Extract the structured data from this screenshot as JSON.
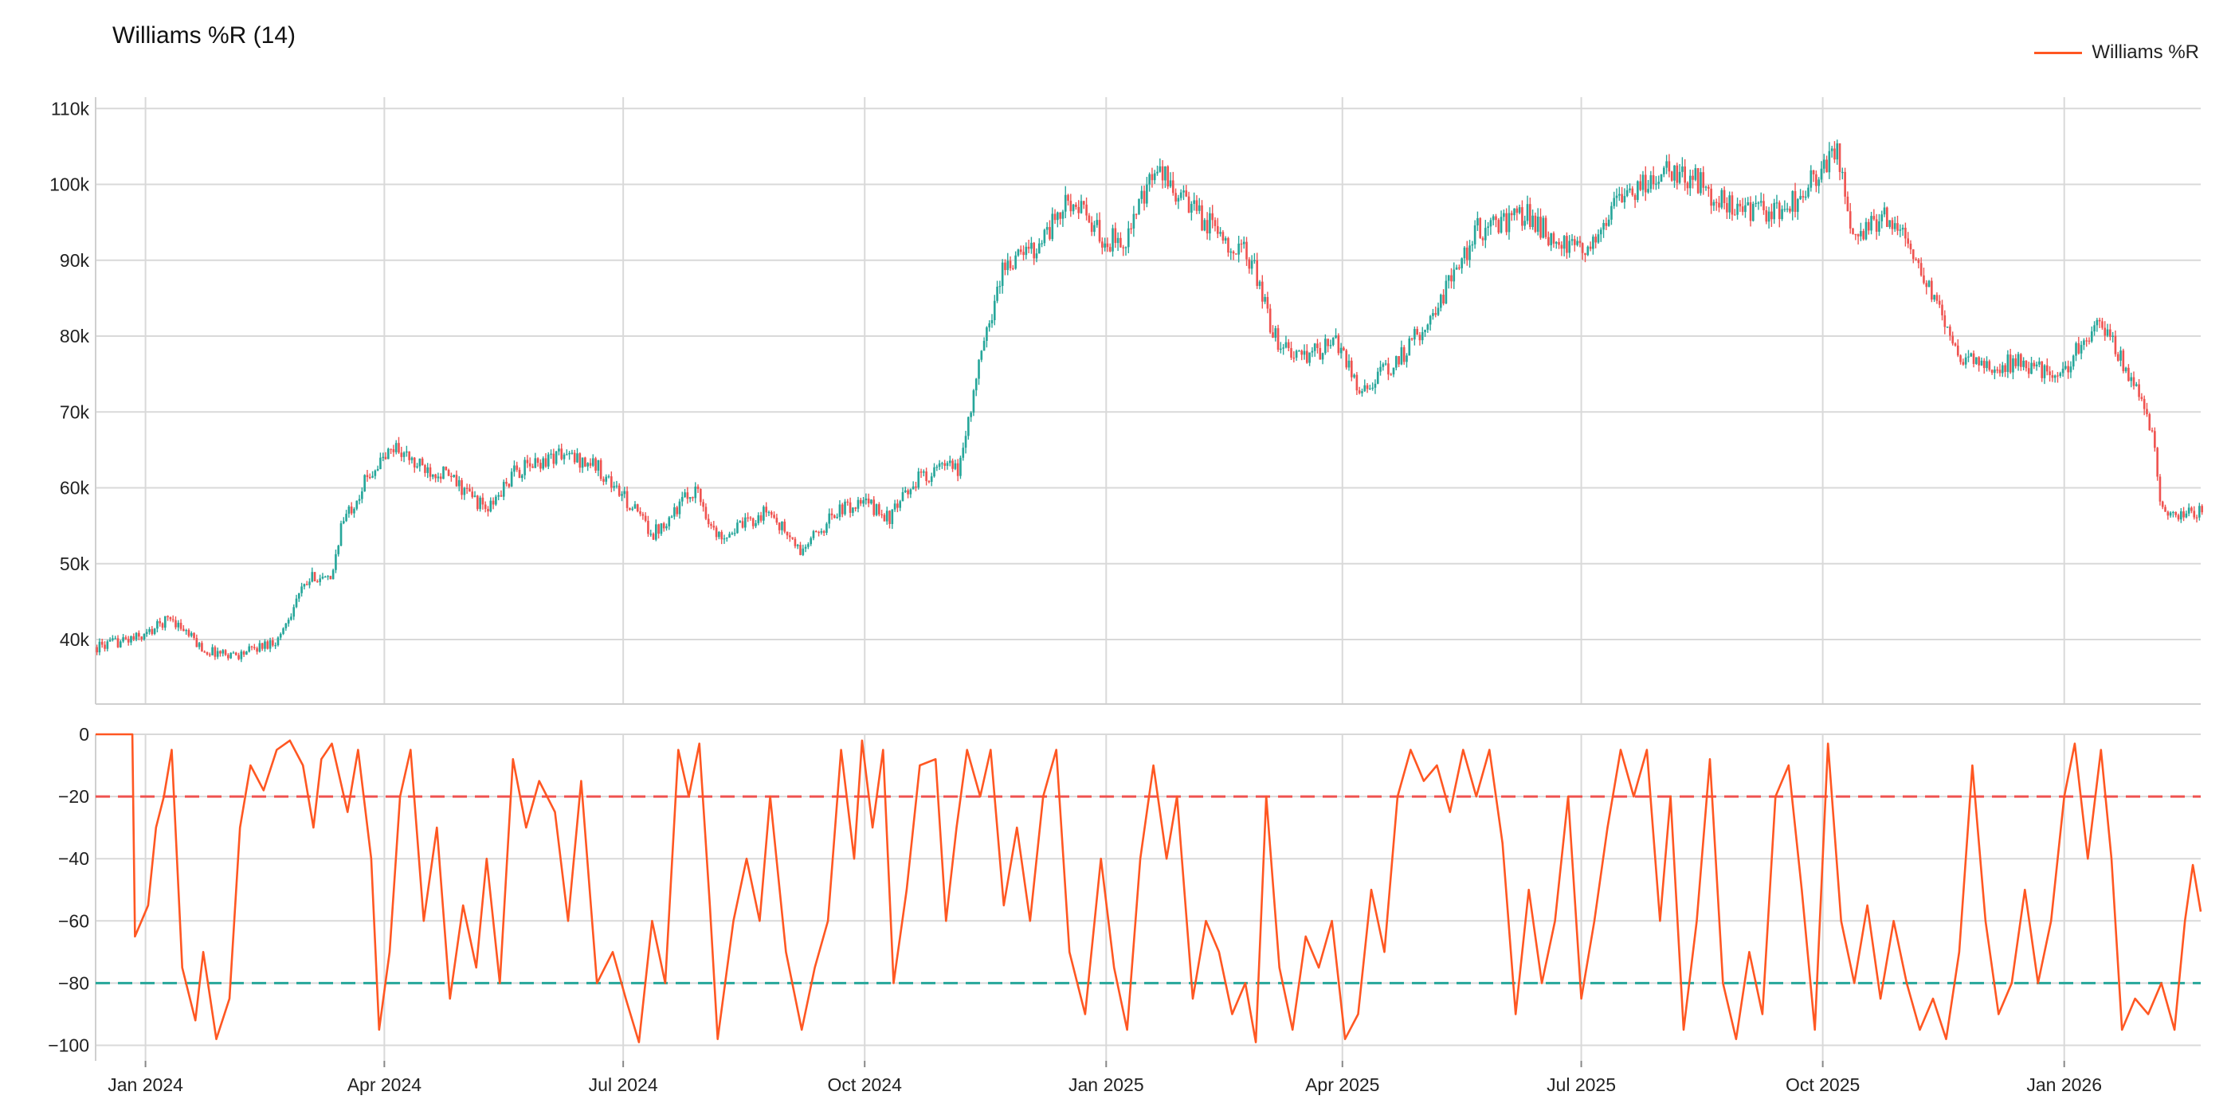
{
  "chart_data": [
    {
      "type": "candlestick",
      "title": "Williams %R (14)",
      "x_ticks": [
        "Jan 2024",
        "Apr 2024",
        "Jul 2024",
        "Oct 2024",
        "Jan 2025",
        "Apr 2025",
        "Jul 2025",
        "Oct 2025",
        "Jan 2026"
      ],
      "y_ticks": [
        "40k",
        "50k",
        "60k",
        "70k",
        "80k",
        "90k",
        "100k",
        "110k"
      ],
      "ylim": [
        31500,
        111500
      ],
      "xlim": [
        "2023-12-13",
        "2026-02-22"
      ],
      "up_color": "#26a69a",
      "down_color": "#ef5350",
      "close_path": [
        [
          "2023-12-13",
          39000
        ],
        [
          "2023-12-31",
          40500
        ],
        [
          "2024-01-10",
          43000
        ],
        [
          "2024-01-23",
          38500
        ],
        [
          "2024-02-05",
          38000
        ],
        [
          "2024-02-20",
          40000
        ],
        [
          "2024-02-28",
          46000
        ],
        [
          "2024-03-05",
          48500
        ],
        [
          "2024-03-11",
          47500
        ],
        [
          "2024-03-15",
          55000
        ],
        [
          "2024-03-26",
          62000
        ],
        [
          "2024-04-05",
          65500
        ],
        [
          "2024-04-12",
          63000
        ],
        [
          "2024-04-23",
          62000
        ],
        [
          "2024-05-10",
          57000
        ],
        [
          "2024-05-20",
          62000
        ],
        [
          "2024-06-06",
          64500
        ],
        [
          "2024-06-20",
          63000
        ],
        [
          "2024-07-05",
          57000
        ],
        [
          "2024-07-12",
          54000
        ],
        [
          "2024-07-28",
          60000
        ],
        [
          "2024-08-05",
          53500
        ],
        [
          "2024-08-15",
          55000
        ],
        [
          "2024-08-25",
          57000
        ],
        [
          "2024-09-06",
          51500
        ],
        [
          "2024-09-20",
          57000
        ],
        [
          "2024-10-01",
          58000
        ],
        [
          "2024-10-10",
          56000
        ],
        [
          "2024-10-20",
          61000
        ],
        [
          "2024-11-01",
          63000
        ],
        [
          "2024-11-05",
          62000
        ],
        [
          "2024-11-13",
          76000
        ],
        [
          "2024-11-22",
          89000
        ],
        [
          "2024-12-05",
          92000
        ],
        [
          "2024-12-18",
          98000
        ],
        [
          "2024-12-31",
          92500
        ],
        [
          "2025-01-08",
          93000
        ],
        [
          "2025-01-20",
          102000
        ],
        [
          "2025-02-01",
          97000
        ],
        [
          "2025-02-25",
          90000
        ],
        [
          "2025-03-05",
          80000
        ],
        [
          "2025-03-15",
          77000
        ],
        [
          "2025-03-30",
          79000
        ],
        [
          "2025-04-07",
          73000
        ],
        [
          "2025-04-20",
          76000
        ],
        [
          "2025-05-05",
          83000
        ],
        [
          "2025-05-22",
          94000
        ],
        [
          "2025-06-10",
          96000
        ],
        [
          "2025-06-22",
          92000
        ],
        [
          "2025-07-01",
          91000
        ],
        [
          "2025-07-15",
          98000
        ],
        [
          "2025-08-01",
          102000
        ],
        [
          "2025-08-14",
          100500
        ],
        [
          "2025-08-25",
          97000
        ],
        [
          "2025-09-10",
          96000
        ],
        [
          "2025-09-20",
          98000
        ],
        [
          "2025-10-06",
          104500
        ],
        [
          "2025-10-11",
          93000
        ],
        [
          "2025-10-25",
          96000
        ],
        [
          "2025-11-05",
          90000
        ],
        [
          "2025-11-20",
          78000
        ],
        [
          "2025-12-01",
          76000
        ],
        [
          "2025-12-15",
          76500
        ],
        [
          "2025-12-31",
          75000
        ],
        [
          "2026-01-05",
          78500
        ],
        [
          "2026-01-14",
          82000
        ],
        [
          "2026-01-25",
          75000
        ],
        [
          "2026-02-03",
          68000
        ],
        [
          "2026-02-06",
          58000
        ],
        [
          "2026-02-15",
          56000
        ],
        [
          "2026-02-22",
          57500
        ]
      ]
    },
    {
      "type": "line",
      "series": [
        {
          "name": "Williams %R",
          "color": "#ff5722"
        }
      ],
      "y_ticks": [
        "0",
        "−20",
        "−40",
        "−60",
        "−80",
        "−100"
      ],
      "ylim": [
        -105,
        0
      ],
      "overbought": -20,
      "oversold": -80,
      "overbought_color": "#ef5350",
      "oversold_color": "#26a69a",
      "points": [
        [
          "2023-12-13",
          0
        ],
        [
          "2023-12-20",
          0
        ],
        [
          "2023-12-27",
          0
        ],
        [
          "2023-12-28",
          -65
        ],
        [
          "2024-01-02",
          -55
        ],
        [
          "2024-01-05",
          -30
        ],
        [
          "2024-01-08",
          -20
        ],
        [
          "2024-01-11",
          -5
        ],
        [
          "2024-01-15",
          -75
        ],
        [
          "2024-01-20",
          -92
        ],
        [
          "2024-01-23",
          -70
        ],
        [
          "2024-01-28",
          -98
        ],
        [
          "2024-02-02",
          -85
        ],
        [
          "2024-02-06",
          -30
        ],
        [
          "2024-02-10",
          -10
        ],
        [
          "2024-02-15",
          -18
        ],
        [
          "2024-02-20",
          -5
        ],
        [
          "2024-02-25",
          -2
        ],
        [
          "2024-03-01",
          -10
        ],
        [
          "2024-03-05",
          -30
        ],
        [
          "2024-03-08",
          -8
        ],
        [
          "2024-03-12",
          -3
        ],
        [
          "2024-03-18",
          -25
        ],
        [
          "2024-03-22",
          -5
        ],
        [
          "2024-03-27",
          -40
        ],
        [
          "2024-03-30",
          -95
        ],
        [
          "2024-04-03",
          -70
        ],
        [
          "2024-04-07",
          -20
        ],
        [
          "2024-04-11",
          -5
        ],
        [
          "2024-04-16",
          -60
        ],
        [
          "2024-04-21",
          -30
        ],
        [
          "2024-04-26",
          -85
        ],
        [
          "2024-05-01",
          -55
        ],
        [
          "2024-05-06",
          -75
        ],
        [
          "2024-05-10",
          -40
        ],
        [
          "2024-05-15",
          -80
        ],
        [
          "2024-05-20",
          -8
        ],
        [
          "2024-05-25",
          -30
        ],
        [
          "2024-05-30",
          -15
        ],
        [
          "2024-06-05",
          -25
        ],
        [
          "2024-06-10",
          -60
        ],
        [
          "2024-06-15",
          -15
        ],
        [
          "2024-06-21",
          -80
        ],
        [
          "2024-06-27",
          -70
        ],
        [
          "2024-07-02",
          -85
        ],
        [
          "2024-07-07",
          -99
        ],
        [
          "2024-07-12",
          -60
        ],
        [
          "2024-07-17",
          -80
        ],
        [
          "2024-07-22",
          -5
        ],
        [
          "2024-07-26",
          -20
        ],
        [
          "2024-07-30",
          -3
        ],
        [
          "2024-08-03",
          -55
        ],
        [
          "2024-08-06",
          -98
        ],
        [
          "2024-08-12",
          -60
        ],
        [
          "2024-08-17",
          -40
        ],
        [
          "2024-08-22",
          -60
        ],
        [
          "2024-08-26",
          -20
        ],
        [
          "2024-09-01",
          -70
        ],
        [
          "2024-09-07",
          -95
        ],
        [
          "2024-09-12",
          -75
        ],
        [
          "2024-09-17",
          -60
        ],
        [
          "2024-09-22",
          -5
        ],
        [
          "2024-09-27",
          -40
        ],
        [
          "2024-09-30",
          -2
        ],
        [
          "2024-10-04",
          -30
        ],
        [
          "2024-10-08",
          -5
        ],
        [
          "2024-10-12",
          -80
        ],
        [
          "2024-10-17",
          -50
        ],
        [
          "2024-10-22",
          -10
        ],
        [
          "2024-10-28",
          -8
        ],
        [
          "2024-11-01",
          -60
        ],
        [
          "2024-11-05",
          -30
        ],
        [
          "2024-11-09",
          -5
        ],
        [
          "2024-11-14",
          -20
        ],
        [
          "2024-11-18",
          -5
        ],
        [
          "2024-11-23",
          -55
        ],
        [
          "2024-11-28",
          -30
        ],
        [
          "2024-12-03",
          -60
        ],
        [
          "2024-12-08",
          -20
        ],
        [
          "2024-12-13",
          -5
        ],
        [
          "2024-12-18",
          -70
        ],
        [
          "2024-12-24",
          -90
        ],
        [
          "2024-12-30",
          -40
        ],
        [
          "2025-01-04",
          -75
        ],
        [
          "2025-01-09",
          -95
        ],
        [
          "2025-01-14",
          -40
        ],
        [
          "2025-01-19",
          -10
        ],
        [
          "2025-01-24",
          -40
        ],
        [
          "2025-01-28",
          -20
        ],
        [
          "2025-02-03",
          -85
        ],
        [
          "2025-02-08",
          -60
        ],
        [
          "2025-02-13",
          -70
        ],
        [
          "2025-02-18",
          -90
        ],
        [
          "2025-02-23",
          -80
        ],
        [
          "2025-02-27",
          -99
        ],
        [
          "2025-03-03",
          -20
        ],
        [
          "2025-03-08",
          -75
        ],
        [
          "2025-03-13",
          -95
        ],
        [
          "2025-03-18",
          -65
        ],
        [
          "2025-03-23",
          -75
        ],
        [
          "2025-03-28",
          -60
        ],
        [
          "2025-04-02",
          -98
        ],
        [
          "2025-04-07",
          -90
        ],
        [
          "2025-04-12",
          -50
        ],
        [
          "2025-04-17",
          -70
        ],
        [
          "2025-04-22",
          -20
        ],
        [
          "2025-04-27",
          -5
        ],
        [
          "2025-05-02",
          -15
        ],
        [
          "2025-05-07",
          -10
        ],
        [
          "2025-05-12",
          -25
        ],
        [
          "2025-05-17",
          -5
        ],
        [
          "2025-05-22",
          -20
        ],
        [
          "2025-05-27",
          -5
        ],
        [
          "2025-06-01",
          -35
        ],
        [
          "2025-06-06",
          -90
        ],
        [
          "2025-06-11",
          -50
        ],
        [
          "2025-06-16",
          -80
        ],
        [
          "2025-06-21",
          -60
        ],
        [
          "2025-06-26",
          -20
        ],
        [
          "2025-07-01",
          -85
        ],
        [
          "2025-07-06",
          -60
        ],
        [
          "2025-07-11",
          -30
        ],
        [
          "2025-07-16",
          -5
        ],
        [
          "2025-07-21",
          -20
        ],
        [
          "2025-07-26",
          -5
        ],
        [
          "2025-07-31",
          -60
        ],
        [
          "2025-08-04",
          -20
        ],
        [
          "2025-08-09",
          -95
        ],
        [
          "2025-08-14",
          -60
        ],
        [
          "2025-08-19",
          -8
        ],
        [
          "2025-08-24",
          -80
        ],
        [
          "2025-08-29",
          -98
        ],
        [
          "2025-09-03",
          -70
        ],
        [
          "2025-09-08",
          -90
        ],
        [
          "2025-09-13",
          -20
        ],
        [
          "2025-09-18",
          -10
        ],
        [
          "2025-09-23",
          -50
        ],
        [
          "2025-09-28",
          -95
        ],
        [
          "2025-10-03",
          -3
        ],
        [
          "2025-10-08",
          -60
        ],
        [
          "2025-10-13",
          -80
        ],
        [
          "2025-10-18",
          -55
        ],
        [
          "2025-10-23",
          -85
        ],
        [
          "2025-10-28",
          -60
        ],
        [
          "2025-11-02",
          -80
        ],
        [
          "2025-11-07",
          -95
        ],
        [
          "2025-11-12",
          -85
        ],
        [
          "2025-11-17",
          -98
        ],
        [
          "2025-11-22",
          -70
        ],
        [
          "2025-11-27",
          -10
        ],
        [
          "2025-12-02",
          -60
        ],
        [
          "2025-12-07",
          -90
        ],
        [
          "2025-12-12",
          -80
        ],
        [
          "2025-12-17",
          -50
        ],
        [
          "2025-12-22",
          -80
        ],
        [
          "2025-12-27",
          -60
        ],
        [
          "2026-01-01",
          -20
        ],
        [
          "2026-01-05",
          -3
        ],
        [
          "2026-01-10",
          -40
        ],
        [
          "2026-01-15",
          -5
        ],
        [
          "2026-01-19",
          -40
        ],
        [
          "2026-01-23",
          -95
        ],
        [
          "2026-01-28",
          -85
        ],
        [
          "2026-02-02",
          -90
        ],
        [
          "2026-02-07",
          -80
        ],
        [
          "2026-02-12",
          -95
        ],
        [
          "2026-02-16",
          -60
        ],
        [
          "2026-02-19",
          -42
        ],
        [
          "2026-02-22",
          -57
        ]
      ]
    }
  ]
}
